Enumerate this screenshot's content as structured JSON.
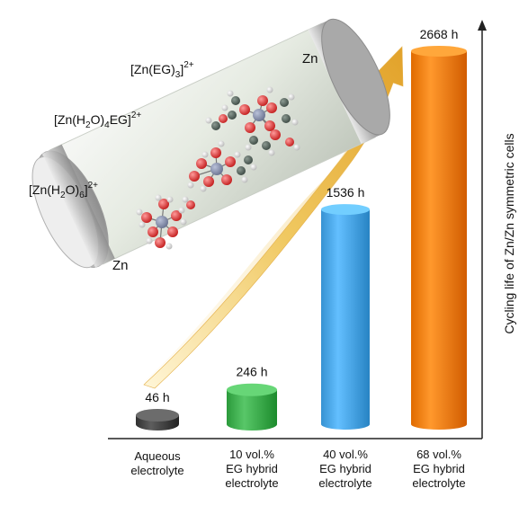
{
  "chart_data": {
    "type": "bar",
    "categories": [
      "Aqueous\nelectrolyte",
      "10 vol.%\nEG hybrid\nelectrolyte",
      "40 vol.%\nEG hybrid\nelectrolyte",
      "68 vol.%\nEG hybrid\nelectrolyte"
    ],
    "values": [
      46,
      246,
      1536,
      2668
    ],
    "value_labels": [
      "46 h",
      "246 h",
      "1536 h",
      "2668 h"
    ],
    "ylabel": "Cycling life of Zn/Zn symmetric cells",
    "ylim": [
      0,
      2700
    ],
    "colors": [
      "#444444",
      "#3fae4f",
      "#4aa6e6",
      "#f47f13"
    ],
    "style": "3d-cylinder"
  },
  "illustration": {
    "electrode_top": "Zn",
    "electrode_bottom": "Zn",
    "ion_labels": {
      "eg3": {
        "base": "[Zn(EG)",
        "sub": "3",
        "sup": "]2+"
      },
      "h2o4eg": {
        "base": "[Zn(H",
        "sub1": "2",
        "mid": "O)",
        "sub2": "4",
        "tail": "EG]",
        "sup": "2+"
      },
      "h2o6": {
        "base": "[Zn(H",
        "sub1": "2",
        "mid": "O)",
        "sub2": "6",
        "sup": "]2+"
      }
    }
  }
}
